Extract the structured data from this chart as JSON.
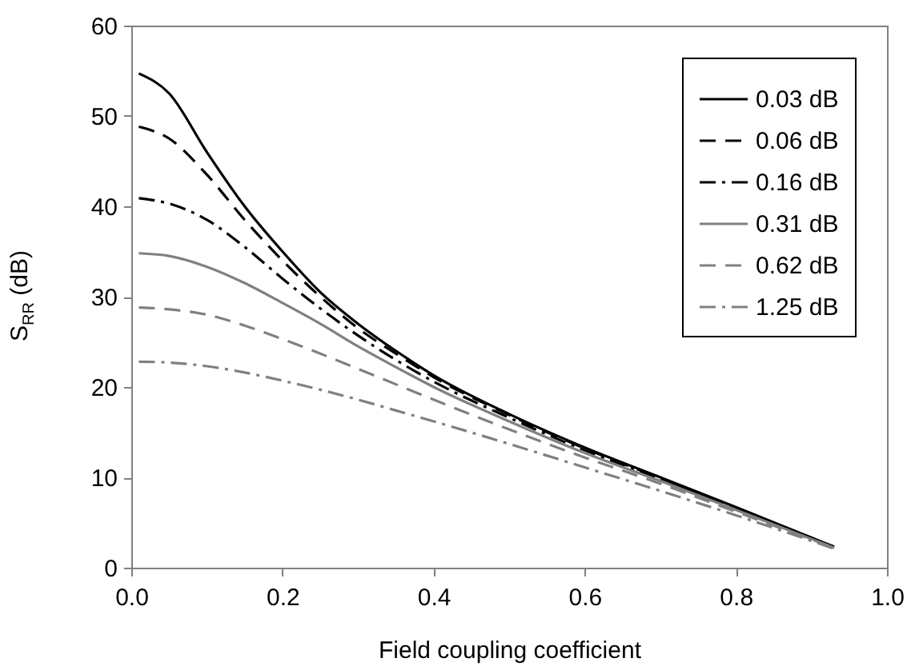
{
  "chart_data": {
    "type": "line",
    "xlabel": "Field coupling coefficient",
    "ylabel": "S$_{RR}$ (dB)",
    "x": [
      0.01,
      0.05,
      0.1,
      0.15,
      0.2,
      0.25,
      0.3,
      0.35,
      0.4,
      0.5,
      0.6,
      0.7,
      0.8,
      0.93
    ],
    "series": [
      {
        "name": "0.03 dB",
        "color": "#000000",
        "line_style": "solid",
        "values": [
          54.7,
          52.5,
          46,
          40,
          35,
          30.5,
          27,
          24,
          21.3,
          17,
          13.3,
          10,
          6.7,
          2.3
        ]
      },
      {
        "name": "0.06 dB",
        "color": "#000000",
        "line_style": "dashed",
        "values": [
          48.8,
          47.5,
          43.5,
          38.5,
          34,
          30,
          26.5,
          23.7,
          21.1,
          16.9,
          13.2,
          9.9,
          6.6,
          2.3
        ]
      },
      {
        "name": "0.16 dB",
        "color": "#000000",
        "line_style": "dashdot",
        "values": [
          40.9,
          40.3,
          38.5,
          35.5,
          32,
          28.7,
          25.7,
          23,
          20.6,
          16.6,
          13,
          9.8,
          6.5,
          2.3
        ]
      },
      {
        "name": "0.31 dB",
        "color": "#808080",
        "line_style": "solid",
        "values": [
          34.8,
          34.5,
          33.3,
          31.5,
          29.3,
          27,
          24.5,
          22.2,
          20,
          16.2,
          12.7,
          9.6,
          6.4,
          2.2
        ]
      },
      {
        "name": "0.62 dB",
        "color": "#808080",
        "line_style": "dashed",
        "values": [
          28.8,
          28.6,
          28,
          26.8,
          25.3,
          23.7,
          22,
          20.3,
          18.6,
          15.3,
          12.2,
          9.3,
          6.2,
          2.2
        ]
      },
      {
        "name": "1.25 dB",
        "color": "#808080",
        "line_style": "dashdot",
        "values": [
          22.8,
          22.7,
          22.3,
          21.6,
          20.7,
          19.7,
          18.6,
          17.4,
          16.2,
          13.7,
          11.1,
          8.5,
          5.8,
          2.1
        ]
      }
    ],
    "xlim": [
      0,
      1
    ],
    "xticks": [
      {
        "value": 0,
        "label": "0.0"
      },
      0.2,
      0.4,
      0.6,
      0.8,
      {
        "value": 1,
        "label": "1.0"
      }
    ],
    "ylim": [
      0,
      60
    ],
    "yticks": [
      0,
      10,
      20,
      30,
      40,
      50,
      60
    ],
    "legend": "top right",
    "marker": "none"
  }
}
